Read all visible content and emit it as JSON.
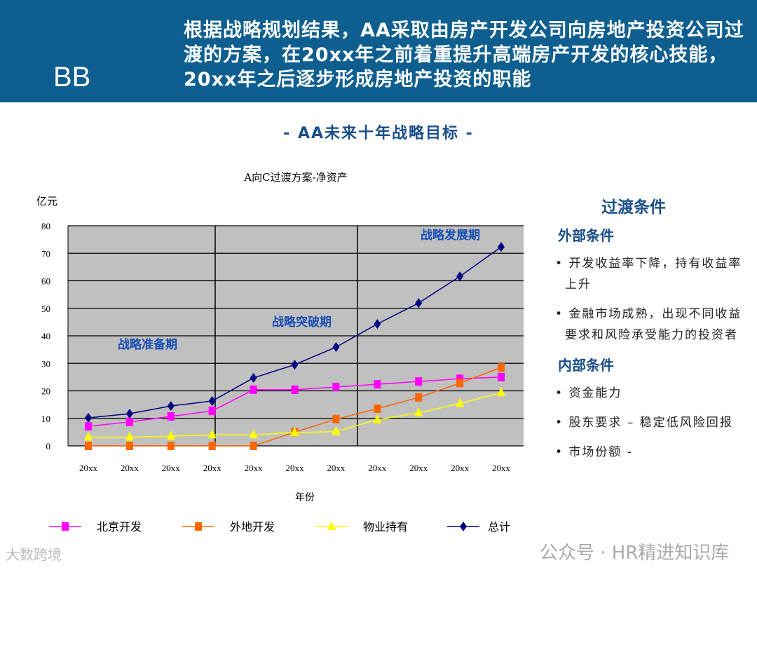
{
  "header": {
    "logo": "BB",
    "title": "根据战略规划结果，AA采取由房产开发公司向房地产投资公司过渡的方案，在20xx年之前着重提升高端房产开发的核心技能，20xx年之后逐步形成房地产投资的职能"
  },
  "subtitle": "- AA未来十年战略目标 -",
  "chart_data": {
    "type": "line",
    "title": "A向C过渡方案-净资产",
    "ylabel": "亿元",
    "xlabel": "年份",
    "ylim": [
      0,
      80
    ],
    "yticks": [
      0,
      10,
      20,
      30,
      40,
      50,
      60,
      70,
      80
    ],
    "categories": [
      "20xx",
      "20xx",
      "20xx",
      "20xx",
      "20xx",
      "20xx",
      "20xx",
      "20xx",
      "20xx",
      "20xx",
      "20xx"
    ],
    "grid": true,
    "legend": "bottom",
    "annotations": [
      "战略准备期",
      "战略突破期",
      "战略发展期"
    ],
    "series": [
      {
        "name": "北京开发",
        "color": "#ff00ff",
        "marker": "square",
        "values": [
          7.1,
          8.7,
          10.7,
          12.7,
          20.4,
          20.4,
          21.4,
          22.4,
          23.4,
          24.4,
          25
        ]
      },
      {
        "name": "外地开发",
        "color": "#ff6600",
        "marker": "square",
        "values": [
          0,
          0,
          0,
          0,
          0,
          5,
          9.7,
          13.5,
          17.6,
          22.8,
          28.5
        ]
      },
      {
        "name": "物业持有",
        "color": "#ffff00",
        "marker": "triangle",
        "values": [
          3.2,
          3.2,
          3.5,
          4,
          4,
          4.8,
          5.2,
          9.5,
          12,
          15.4,
          19.3
        ]
      },
      {
        "name": "总计",
        "color": "#000080",
        "marker": "diamond",
        "values": [
          10.2,
          11.7,
          14.5,
          16.3,
          24.7,
          29.5,
          35.9,
          44.3,
          51.9,
          61.6,
          72.3
        ]
      }
    ]
  },
  "side": {
    "title": "过渡条件",
    "external": {
      "heading": "外部条件",
      "items": [
        "开发收益率下降，持有收益率上升",
        "金融市场成熟，出现不同收益要求和风险承受能力的投资者"
      ]
    },
    "internal": {
      "heading": "内部条件",
      "items": [
        "资金能力",
        "股东要求 – 稳定低风险回报",
        "市场份额 -"
      ]
    }
  },
  "watermarks": [
    "公众号 · HR精进知识库",
    "大数跨境"
  ]
}
